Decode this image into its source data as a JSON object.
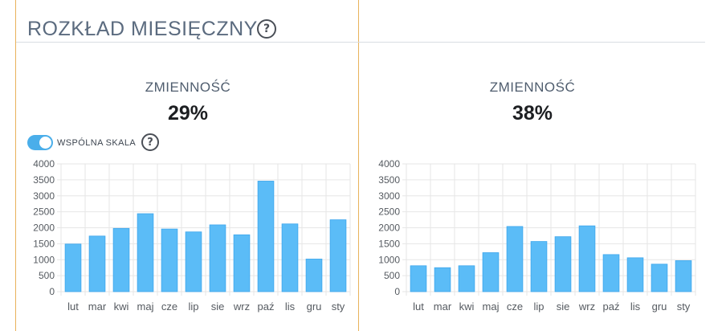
{
  "section": {
    "title": "ROZKŁAD MIESIĘCZNY",
    "help_icon": "question-circle-icon"
  },
  "left_panel": {
    "variability_label": "ZMIENNOŚĆ",
    "variability_value": "29%",
    "shared_scale_toggle": {
      "label": "WSPÓLNA SKALA",
      "on": true
    },
    "help_icon": "question-circle-icon"
  },
  "right_panel": {
    "variability_label": "ZMIENNOŚĆ",
    "variability_value": "38%"
  },
  "colors": {
    "bar": "#5bbcf7",
    "bar_edge": "#3da6ec",
    "grid": "#e6e6e6",
    "accent_border": "#e8b25a"
  },
  "chart_data": [
    {
      "type": "bar",
      "categories": [
        "lut",
        "mar",
        "kwi",
        "maj",
        "cze",
        "lip",
        "sie",
        "wrz",
        "paź",
        "lis",
        "gru",
        "sty"
      ],
      "values": [
        1490,
        1740,
        1980,
        2440,
        1960,
        1870,
        2090,
        1780,
        3460,
        2120,
        1020,
        2250
      ],
      "ylim": [
        0,
        4000
      ],
      "yticks": [
        "0",
        "500",
        "1000",
        "1500",
        "2000",
        "2500",
        "3000",
        "3500",
        "4000"
      ],
      "grid": true,
      "legend": "none"
    },
    {
      "type": "bar",
      "categories": [
        "lut",
        "mar",
        "kwi",
        "maj",
        "cze",
        "lip",
        "sie",
        "wrz",
        "paź",
        "lis",
        "gru",
        "sty"
      ],
      "values": [
        810,
        750,
        810,
        1220,
        2040,
        1570,
        1720,
        2060,
        1160,
        1060,
        860,
        970
      ],
      "ylim": [
        0,
        4000
      ],
      "yticks": [
        "0",
        "500",
        "1000",
        "1500",
        "2000",
        "2500",
        "3000",
        "3500",
        "4000"
      ],
      "grid": true,
      "legend": "none"
    }
  ]
}
